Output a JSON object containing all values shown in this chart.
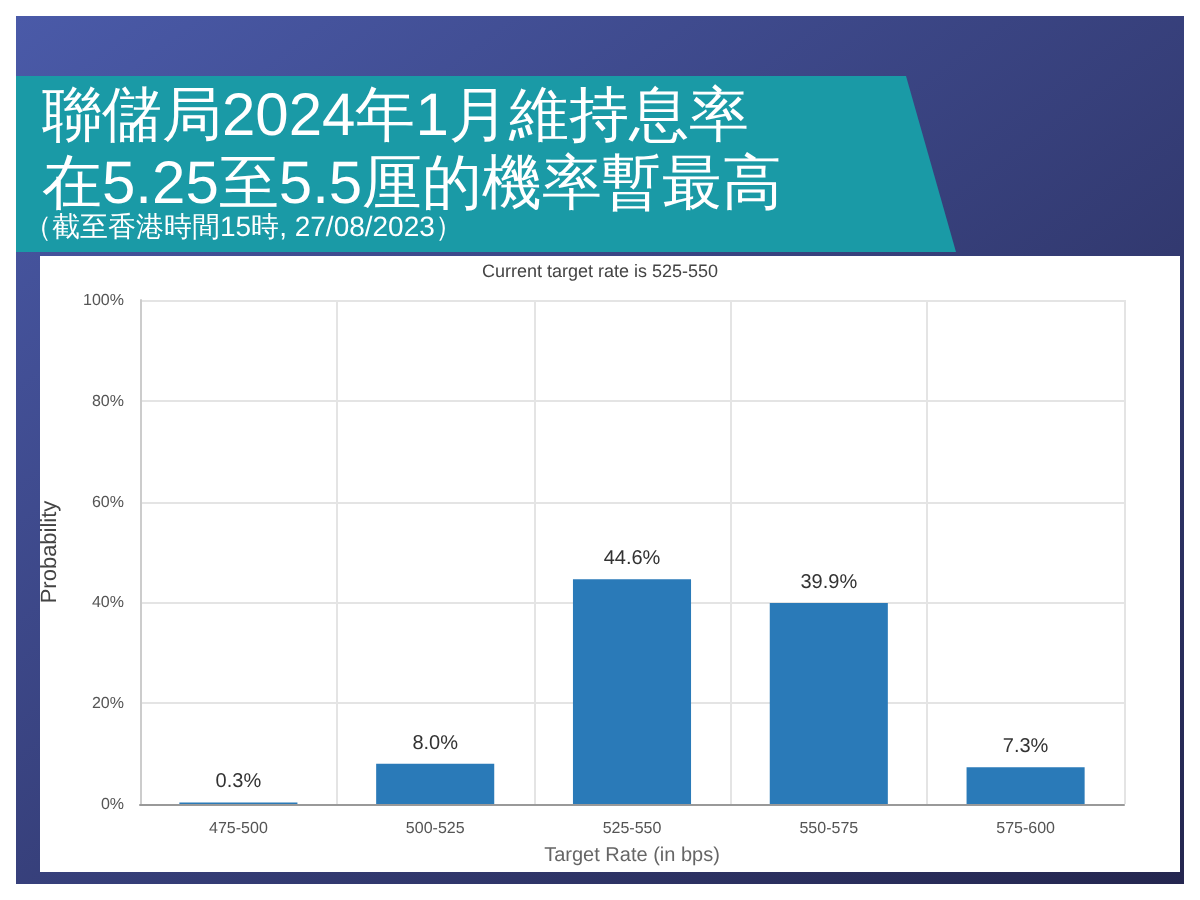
{
  "chart_data": {
    "type": "bar",
    "title": "聯儲局2024年1月維持息率",
    "subtitle": "在5.25至5.5厘的機率暫最高",
    "annotations": [
      "（截至香港時間15時, 27/08/2023）",
      "Current target rate is 525-550"
    ],
    "xlabel": "Target Rate (in bps)",
    "ylabel": "Probability",
    "categories": [
      "475-500",
      "500-525",
      "525-550",
      "550-575",
      "575-600"
    ],
    "values": [
      0.3,
      8.0,
      44.6,
      39.9,
      7.3
    ],
    "value_labels": [
      "0.3%",
      "8.0%",
      "44.6%",
      "39.9%",
      "7.3%"
    ],
    "color": "#2a7ab8",
    "ylim": [
      0,
      100
    ],
    "yticks": [
      {
        "value": 0,
        "label": "0%"
      },
      {
        "value": 20,
        "label": "20%"
      },
      {
        "value": 40,
        "label": "40%"
      },
      {
        "value": 60,
        "label": "60%"
      },
      {
        "value": 80,
        "label": "80%"
      },
      {
        "value": 100,
        "label": "100%"
      }
    ],
    "grid": true
  }
}
